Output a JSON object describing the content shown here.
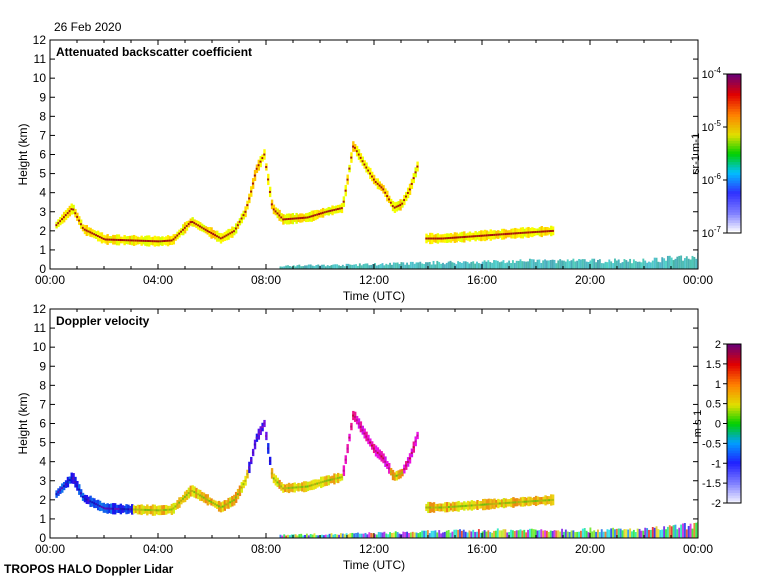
{
  "date_label": "26 Feb 2020",
  "footer_label": "TROPOS HALO Doppler Lidar",
  "chart_data": [
    {
      "type": "heatmap",
      "title": "Attenuated backscatter coefficient",
      "xlabel": "Time (UTC)",
      "ylabel": "Height (km)",
      "xlim": [
        0,
        24
      ],
      "ylim": [
        0,
        12
      ],
      "x_ticks": [
        "00:00",
        "04:00",
        "08:00",
        "12:00",
        "16:00",
        "20:00",
        "00:00"
      ],
      "y_ticks": [
        "0",
        "1",
        "2",
        "3",
        "4",
        "5",
        "6",
        "7",
        "8",
        "9",
        "10",
        "11",
        "12"
      ],
      "colorbar": {
        "label": "sr-1 m-1",
        "scale": "log",
        "range": [
          1e-07,
          0.0001
        ],
        "ticks": [
          "10-7",
          "10-6",
          "10-5",
          "10-4"
        ]
      },
      "features": [
        {
          "name": "low cloud layer",
          "points": [
            [
              0.2,
              2.3
            ],
            [
              0.8,
              3.2
            ],
            [
              1.2,
              2.1
            ],
            [
              2,
              1.55
            ],
            [
              3,
              1.5
            ],
            [
              4,
              1.45
            ],
            [
              4.5,
              1.5
            ],
            [
              5.2,
              2.5
            ],
            [
              5.8,
              2.0
            ],
            [
              6.3,
              1.6
            ],
            [
              6.8,
              2.0
            ],
            [
              7.2,
              3.0
            ],
            [
              7.4,
              4.0
            ],
            [
              7.6,
              5.2
            ],
            [
              7.9,
              6.0
            ],
            [
              8.2,
              3.2
            ],
            [
              8.6,
              2.6
            ],
            [
              9.5,
              2.7
            ],
            [
              10.2,
              3.0
            ],
            [
              10.8,
              3.2
            ],
            [
              11.2,
              6.5
            ],
            [
              11.6,
              5.5
            ],
            [
              12,
              4.6
            ],
            [
              12.3,
              4.2
            ],
            [
              12.7,
              3.2
            ],
            [
              13,
              3.4
            ],
            [
              13.3,
              4.2
            ],
            [
              13.6,
              5.5
            ]
          ]
        },
        {
          "name": "elevated layer",
          "points": [
            [
              13.9,
              1.6
            ],
            [
              14.5,
              1.6
            ],
            [
              15.5,
              1.7
            ],
            [
              16.5,
              1.8
            ],
            [
              17.5,
              1.9
            ],
            [
              18.6,
              2.0
            ]
          ]
        },
        {
          "name": "boundary layer aerosol",
          "points": [
            [
              8.5,
              0.2
            ],
            [
              11,
              0.25
            ],
            [
              14.5,
              0.4
            ],
            [
              18,
              0.5
            ],
            [
              20,
              0.5
            ],
            [
              22,
              0.5
            ],
            [
              24,
              0.8
            ]
          ]
        }
      ]
    },
    {
      "type": "heatmap",
      "title": "Doppler velocity",
      "xlabel": "Time (UTC)",
      "ylabel": "Height (km)",
      "xlim": [
        0,
        24
      ],
      "ylim": [
        0,
        12
      ],
      "x_ticks": [
        "00:00",
        "04:00",
        "08:00",
        "12:00",
        "16:00",
        "20:00",
        "00:00"
      ],
      "y_ticks": [
        "0",
        "1",
        "2",
        "3",
        "4",
        "5",
        "6",
        "7",
        "8",
        "9",
        "10",
        "11",
        "12"
      ],
      "colorbar": {
        "label": "m s-1",
        "scale": "linear",
        "range": [
          -2,
          2
        ],
        "ticks": [
          "2",
          "1.5",
          "1",
          "0.5",
          "0",
          "-0.5",
          "-1",
          "-1.5",
          "-2"
        ]
      },
      "features": [
        {
          "name": "low cloud layer",
          "points": [
            [
              0.2,
              2.3
            ],
            [
              0.8,
              3.2
            ],
            [
              1.2,
              2.1
            ],
            [
              2,
              1.55
            ],
            [
              3,
              1.5
            ],
            [
              4,
              1.45
            ],
            [
              4.5,
              1.5
            ],
            [
              5.2,
              2.5
            ],
            [
              5.8,
              2.0
            ],
            [
              6.3,
              1.6
            ],
            [
              6.8,
              2.0
            ],
            [
              7.2,
              3.0
            ],
            [
              7.4,
              4.0
            ],
            [
              7.6,
              5.2
            ],
            [
              7.9,
              6.0
            ],
            [
              8.2,
              3.2
            ],
            [
              8.6,
              2.6
            ],
            [
              9.5,
              2.7
            ],
            [
              10.2,
              3.0
            ],
            [
              10.8,
              3.2
            ],
            [
              11.2,
              6.5
            ],
            [
              11.6,
              5.5
            ],
            [
              12,
              4.6
            ],
            [
              12.3,
              4.2
            ],
            [
              12.7,
              3.2
            ],
            [
              13,
              3.4
            ],
            [
              13.3,
              4.2
            ],
            [
              13.6,
              5.5
            ]
          ]
        },
        {
          "name": "elevated layer",
          "points": [
            [
              13.9,
              1.6
            ],
            [
              14.5,
              1.6
            ],
            [
              15.5,
              1.7
            ],
            [
              16.5,
              1.8
            ],
            [
              17.5,
              1.9
            ],
            [
              18.6,
              2.0
            ]
          ]
        },
        {
          "name": "boundary layer aerosol",
          "points": [
            [
              8.5,
              0.2
            ],
            [
              11,
              0.25
            ],
            [
              14.5,
              0.4
            ],
            [
              18,
              0.5
            ],
            [
              20,
              0.5
            ],
            [
              22,
              0.5
            ],
            [
              24,
              0.8
            ]
          ]
        }
      ]
    }
  ]
}
